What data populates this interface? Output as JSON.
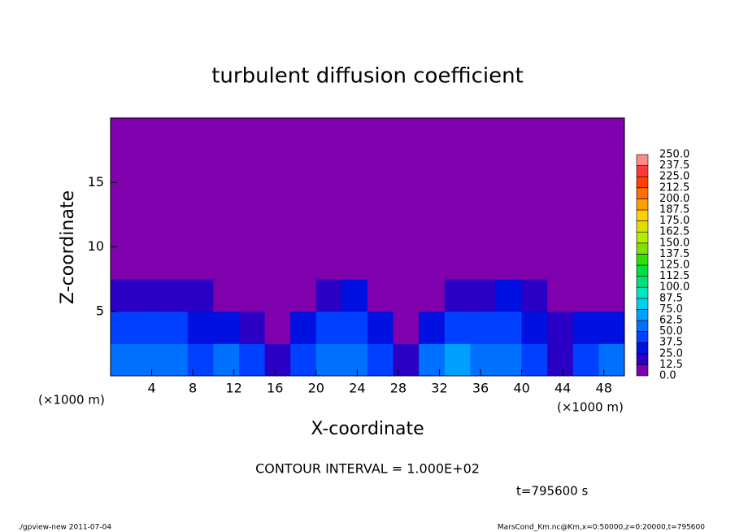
{
  "chart_data": {
    "type": "heatmap",
    "title": "turbulent diffusion coefficient",
    "xlabel": "X-coordinate",
    "ylabel": "Z-coordinate",
    "x_unit": "(×1000 m)",
    "annotation": "CONTOUR INTERVAL = 1.000E+02",
    "time_label": "t=795600 s",
    "footer_left": "./gpview-new  2011-07-04",
    "footer_right": "MarsCond_Km.nc@Km,x=0:50000,z=0:20000,t=795600",
    "xlim": [
      0,
      50
    ],
    "ylim": [
      0,
      20
    ],
    "xticks": [
      4,
      8,
      12,
      16,
      20,
      24,
      28,
      32,
      36,
      40,
      44,
      48
    ],
    "yticks": [
      5,
      10,
      15
    ],
    "levels": [
      {
        "value": 0,
        "label": "0.0"
      },
      {
        "value": 12.5,
        "label": "12.5"
      },
      {
        "value": 25,
        "label": "25.0"
      },
      {
        "value": 37.5,
        "label": "37.5"
      },
      {
        "value": 50,
        "label": "50.0"
      },
      {
        "value": 62.5,
        "label": "62.5"
      },
      {
        "value": 75,
        "label": "75.0"
      },
      {
        "value": 87.5,
        "label": "87.5"
      },
      {
        "value": 100,
        "label": "100.0"
      },
      {
        "value": 112.5,
        "label": "112.5"
      },
      {
        "value": 125,
        "label": "125.0"
      },
      {
        "value": 137.5,
        "label": "137.5"
      },
      {
        "value": 150,
        "label": "150.0"
      },
      {
        "value": 162.5,
        "label": "162.5"
      },
      {
        "value": 175,
        "label": "175.0"
      },
      {
        "value": 187.5,
        "label": "187.5"
      },
      {
        "value": 200,
        "label": "200.0"
      },
      {
        "value": 212.5,
        "label": "212.5"
      },
      {
        "value": 225,
        "label": "225.0"
      },
      {
        "value": 237.5,
        "label": "237.5"
      },
      {
        "value": 250,
        "label": "250.0"
      }
    ],
    "colors": [
      "#7f00ad",
      "#2a00c4",
      "#0010e0",
      "#0040ff",
      "#0070ff",
      "#00a0ff",
      "#00d0f0",
      "#00e8c0",
      "#00e080",
      "#00e040",
      "#30e000",
      "#80e000",
      "#b0f000",
      "#e0e000",
      "#ffd000",
      "#ffa000",
      "#ff7000",
      "#ff4000",
      "#ff3838",
      "#ff8a8a"
    ],
    "z": [
      [
        55,
        60,
        50,
        45,
        50,
        40,
        15,
        45,
        55,
        50,
        40,
        15,
        60,
        70,
        55,
        50,
        45,
        20,
        45,
        50
      ],
      [
        40,
        45,
        40,
        35,
        30,
        15,
        10,
        30,
        40,
        45,
        30,
        10,
        35,
        40,
        45,
        40,
        35,
        15,
        30,
        35
      ],
      [
        15,
        20,
        15,
        15,
        8,
        5,
        5,
        8,
        20,
        25,
        8,
        5,
        8,
        15,
        20,
        25,
        15,
        5,
        8,
        10
      ],
      [
        10,
        8,
        6,
        8,
        6,
        8,
        6,
        10,
        8,
        6,
        8,
        6,
        5,
        6,
        8,
        6,
        8,
        6,
        5,
        8
      ],
      [
        6,
        5,
        8,
        6,
        10,
        8,
        6,
        5,
        8,
        6,
        5,
        8,
        6,
        5,
        6,
        8,
        10,
        6,
        5,
        6
      ],
      [
        2,
        3,
        2,
        3,
        2,
        2,
        3,
        2,
        3,
        2,
        2,
        3,
        2,
        2,
        3,
        2,
        3,
        2,
        2,
        3
      ],
      [
        0,
        0,
        0,
        0,
        0,
        0,
        0,
        0,
        0,
        0,
        0,
        0,
        0,
        0,
        0,
        0,
        0,
        0,
        0,
        0
      ],
      [
        0,
        0,
        0,
        0,
        0,
        0,
        0,
        0,
        0,
        0,
        0,
        0,
        0,
        0,
        0,
        0,
        0,
        0,
        0,
        0
      ]
    ]
  }
}
